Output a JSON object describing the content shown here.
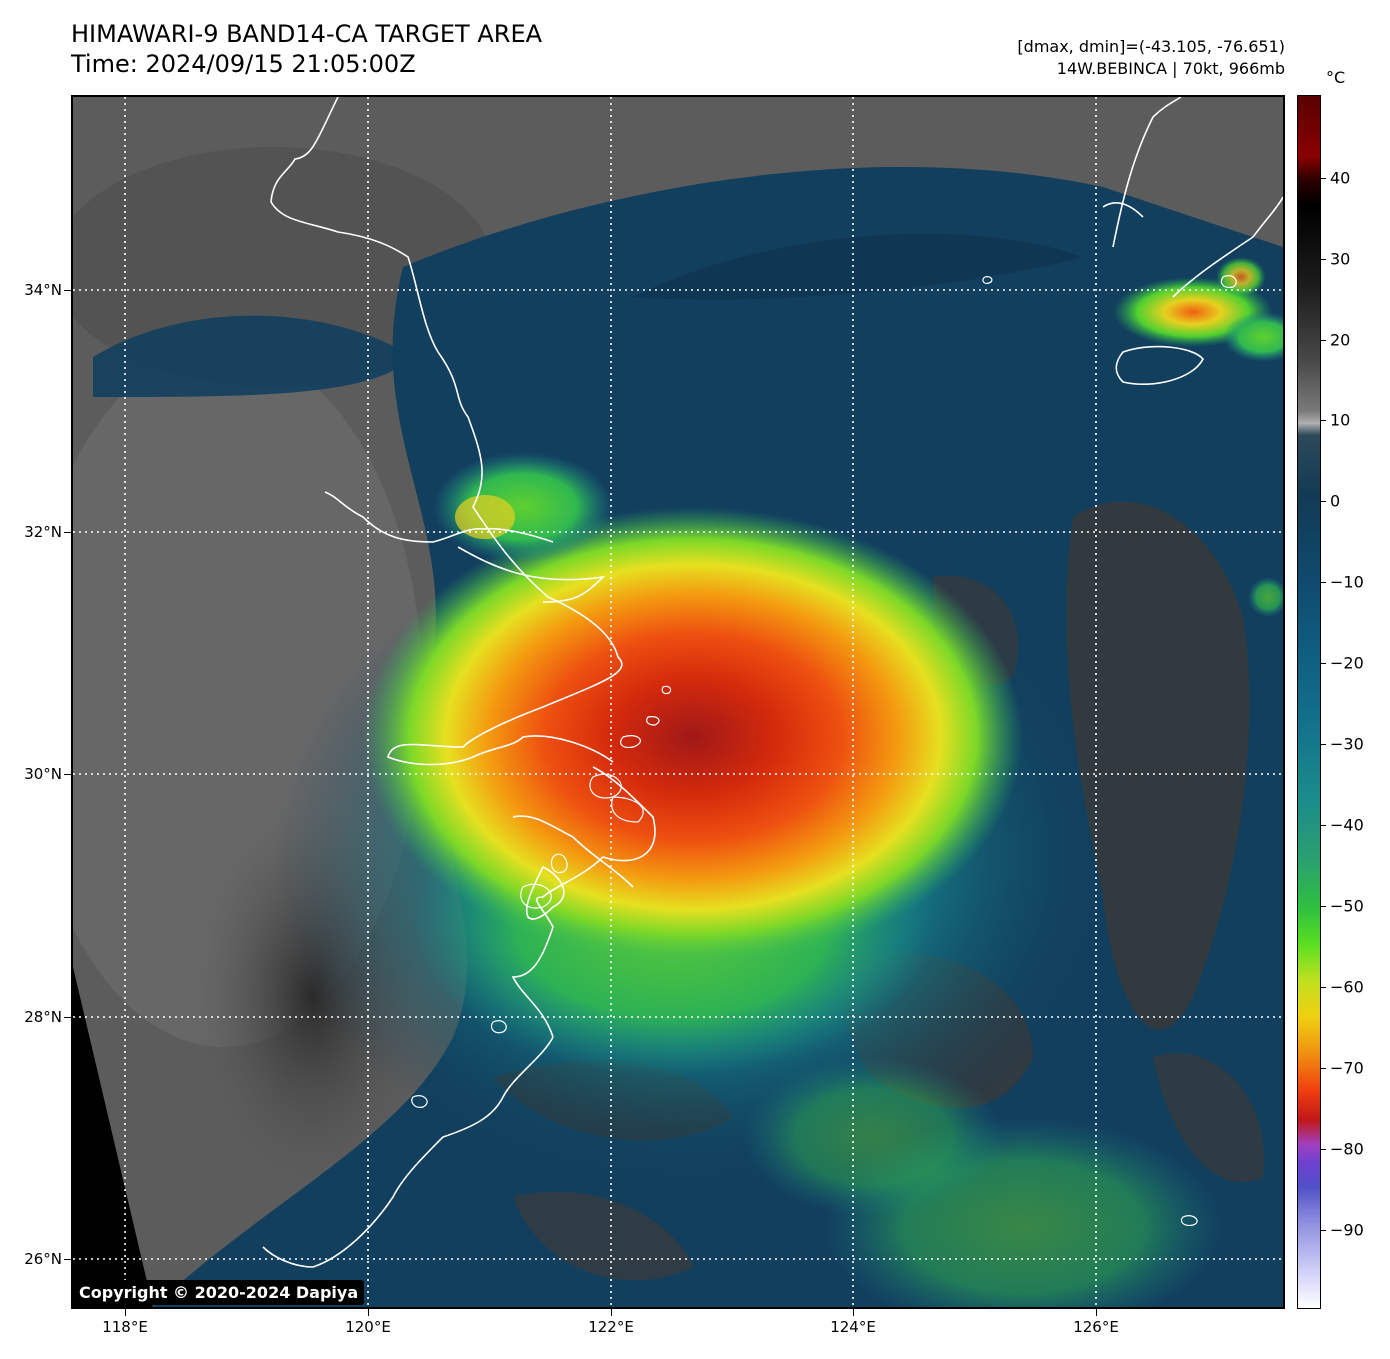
{
  "header": {
    "title_line1": "HIMAWARI-9 BAND14-CA TARGET AREA",
    "title_line2": "Time: 2024/09/15 21:05:00Z",
    "range_text": "[dmax, dmin]=(-43.105, -76.651)",
    "storm_text": "14W.BEBINCA | 70kt, 966mb"
  },
  "map": {
    "lat_labels": [
      "34°N",
      "32°N",
      "30°N",
      "28°N",
      "26°N"
    ],
    "lon_labels": [
      "118°E",
      "120°E",
      "122°E",
      "124°E",
      "126°E"
    ],
    "copyright": "Copyright © 2020-2024 Dapiya",
    "colors": {
      "land_gray": "#5a5a5a",
      "sea_blue": "#123f5e",
      "teal": "#1a8a8a",
      "green": "#3cc840",
      "yellow": "#e8e020",
      "orange": "#f08a10",
      "red": "#e82a0a",
      "dark_red": "#b01818",
      "coastline": "#ffffff",
      "grid": "#ffffff"
    }
  },
  "colorbar": {
    "unit": "°C",
    "ticks": [
      "40",
      "30",
      "20",
      "10",
      "0",
      "−10",
      "−20",
      "−30",
      "−40",
      "−50",
      "−60",
      "−70",
      "−80",
      "−90"
    ]
  }
}
